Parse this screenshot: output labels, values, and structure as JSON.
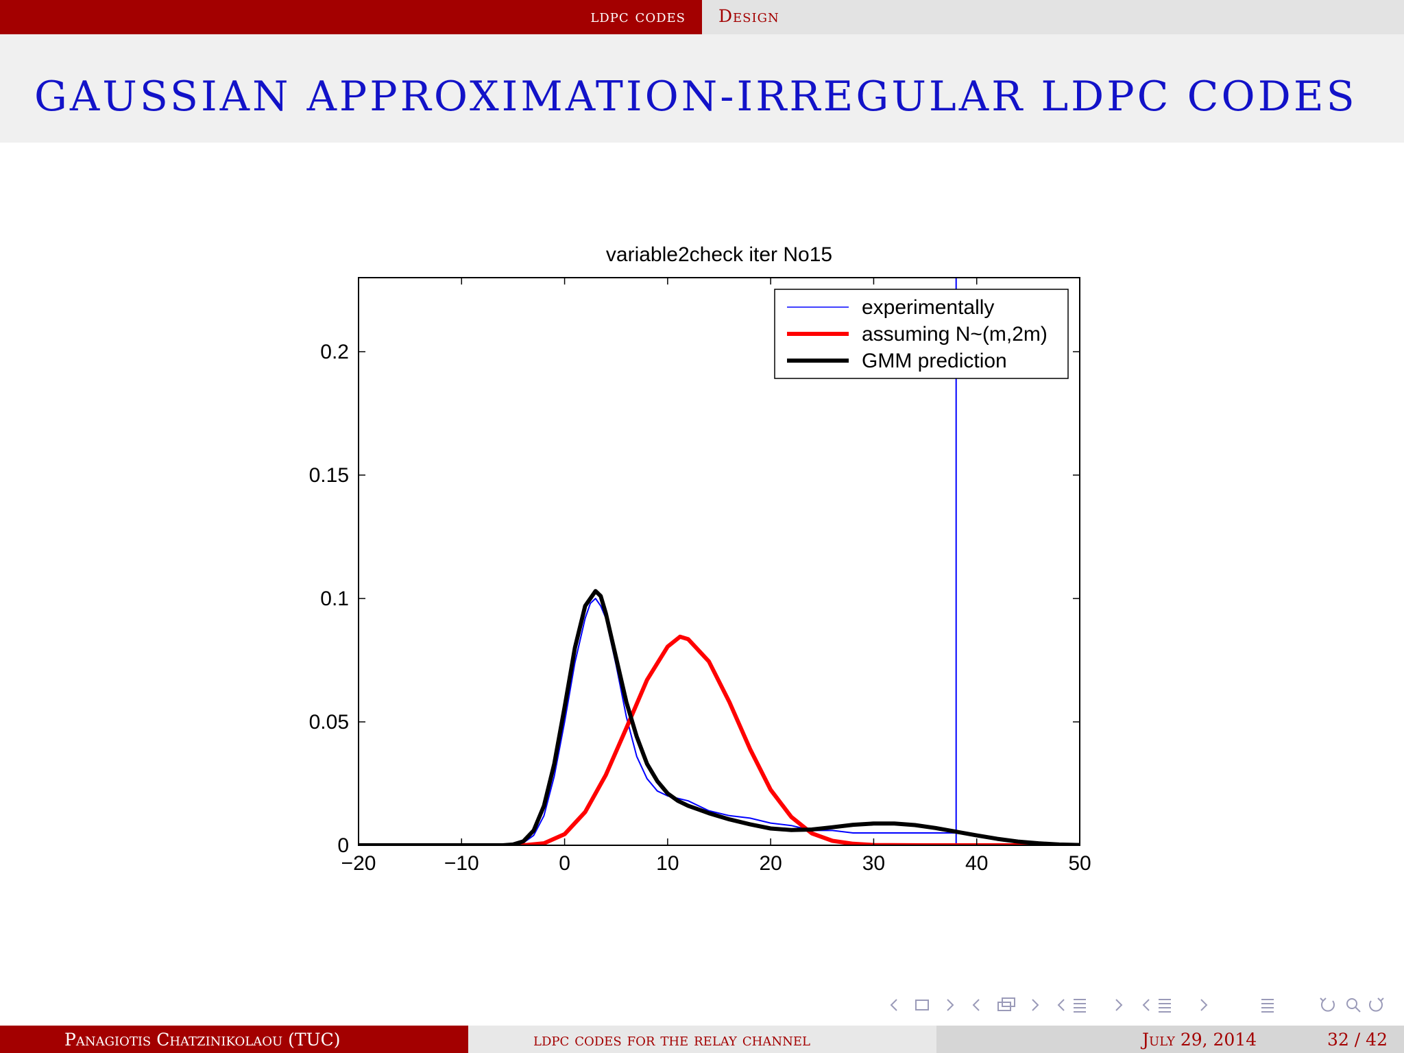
{
  "header": {
    "section": "ldpc codes",
    "subsection": "Design"
  },
  "slide": {
    "title": "GAUSSIAN APPROXIMATION-IRREGULAR LDPC CODES"
  },
  "footer": {
    "author": "Panagiotis Chatzinikolaou (TUC)",
    "short_title": "ldpc codes for the relay channel",
    "date": "July 29, 2014",
    "page": "32 / 42"
  },
  "colors": {
    "header_red": "#a30000",
    "title_blue": "#1212c8",
    "experimental_blue": "#0000ff",
    "assumed_red": "#ff0000",
    "gmm_black": "#000000"
  },
  "chart_data": {
    "type": "line",
    "title": "variable2check iter No15",
    "xlim": [
      -20,
      50
    ],
    "ylim": [
      0,
      0.23
    ],
    "xticks": [
      -20,
      -10,
      0,
      10,
      20,
      30,
      40,
      50
    ],
    "xtick_labels": [
      "−20",
      "−10",
      "0",
      "10",
      "20",
      "30",
      "40",
      "50"
    ],
    "yticks": [
      0,
      0.05,
      0.1,
      0.15,
      0.2
    ],
    "ytick_labels": [
      "0",
      "0.05",
      "0.1",
      "0.15",
      "0.2"
    ],
    "legend_position": "top-right",
    "grid": false,
    "series": [
      {
        "name": "experimentally",
        "color": "#0000ff",
        "x": [
          -20,
          -6,
          -4,
          -3,
          -2,
          -1,
          0,
          1,
          2,
          2.5,
          3,
          3.5,
          4,
          5,
          6,
          7,
          8,
          9,
          10,
          11,
          12,
          14,
          16,
          18,
          20,
          22,
          24,
          26,
          28,
          30,
          32,
          34,
          36,
          38,
          38,
          38
        ],
        "y": [
          0,
          0,
          0.001,
          0.004,
          0.012,
          0.028,
          0.05,
          0.074,
          0.092,
          0.098,
          0.1,
          0.097,
          0.092,
          0.073,
          0.052,
          0.036,
          0.027,
          0.022,
          0.02,
          0.019,
          0.018,
          0.014,
          0.012,
          0.011,
          0.009,
          0.008,
          0.006,
          0.006,
          0.005,
          0.005,
          0.005,
          0.005,
          0.005,
          0.005,
          0.23,
          0
        ]
      },
      {
        "name": "assuming N~(m,2m)",
        "color": "#ff0000",
        "x": [
          -20,
          -4,
          -2,
          0,
          2,
          4,
          6,
          8,
          10,
          11.2,
          12,
          14,
          16,
          18,
          20,
          22,
          24,
          26,
          28,
          30,
          35,
          50
        ],
        "y": [
          0,
          0,
          0.0008,
          0.0045,
          0.0135,
          0.0285,
          0.0475,
          0.067,
          0.0805,
          0.0845,
          0.0835,
          0.0745,
          0.058,
          0.039,
          0.0225,
          0.0115,
          0.0048,
          0.0018,
          0.0006,
          0.0001,
          0,
          0
        ]
      },
      {
        "name": "GMM prediction",
        "color": "#000000",
        "x": [
          -20,
          -6,
          -5,
          -4,
          -3,
          -2,
          -1,
          0,
          1,
          2,
          3,
          3.5,
          4,
          5,
          6,
          7,
          8,
          9,
          10,
          11,
          12,
          14,
          16,
          18,
          20,
          22,
          24,
          26,
          28,
          30,
          32,
          34,
          36,
          38,
          40,
          42,
          44,
          46,
          48,
          50
        ],
        "y": [
          0,
          0,
          0.0003,
          0.0016,
          0.006,
          0.016,
          0.033,
          0.056,
          0.08,
          0.097,
          0.103,
          0.101,
          0.094,
          0.076,
          0.058,
          0.044,
          0.033,
          0.026,
          0.021,
          0.018,
          0.016,
          0.013,
          0.0105,
          0.0085,
          0.0068,
          0.0062,
          0.0064,
          0.0073,
          0.0083,
          0.0088,
          0.0088,
          0.0082,
          0.007,
          0.0055,
          0.004,
          0.0026,
          0.0015,
          0.0008,
          0.0003,
          0.0001
        ]
      }
    ]
  }
}
